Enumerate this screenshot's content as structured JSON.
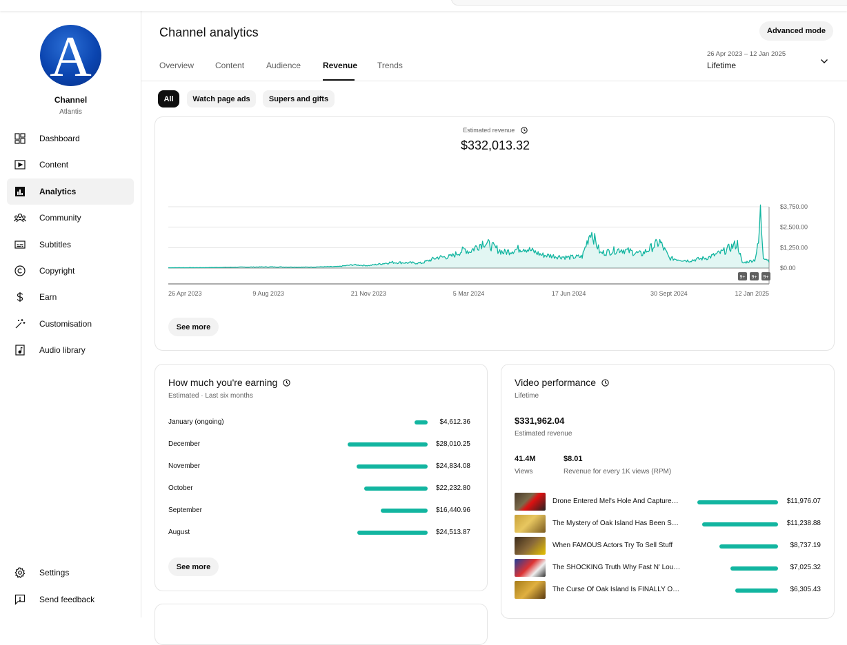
{
  "channel": {
    "name": "Channel",
    "subtitle": "Atlantis",
    "avatar_letter": "A"
  },
  "nav": {
    "items": [
      {
        "label": "Dashboard",
        "icon": "dashboard-icon"
      },
      {
        "label": "Content",
        "icon": "content-icon"
      },
      {
        "label": "Analytics",
        "icon": "analytics-icon",
        "active": true
      },
      {
        "label": "Community",
        "icon": "community-icon"
      },
      {
        "label": "Subtitles",
        "icon": "subtitles-icon"
      },
      {
        "label": "Copyright",
        "icon": "copyright-icon"
      },
      {
        "label": "Earn",
        "icon": "earn-icon"
      },
      {
        "label": "Customisation",
        "icon": "customisation-icon"
      },
      {
        "label": "Audio library",
        "icon": "audio-library-icon"
      }
    ],
    "bottom": [
      {
        "label": "Settings",
        "icon": "settings-icon"
      },
      {
        "label": "Send feedback",
        "icon": "feedback-icon"
      }
    ]
  },
  "header": {
    "title": "Channel analytics",
    "advanced_mode": "Advanced mode",
    "tabs": [
      "Overview",
      "Content",
      "Audience",
      "Revenue",
      "Trends"
    ],
    "active_tab": "Revenue",
    "date_range": "26 Apr 2023 – 12 Jan 2025",
    "date_label": "Lifetime"
  },
  "filters": {
    "chips": [
      "All",
      "Watch page ads",
      "Supers and gifts"
    ],
    "active": "All"
  },
  "revenue_card": {
    "label": "Estimated revenue",
    "value": "$332,013.32",
    "see_more": "See more",
    "badges": [
      "9+",
      "9+",
      "9+"
    ]
  },
  "earning_card": {
    "title": "How much you're earning",
    "subtitle": "Estimated · Last six months",
    "see_more": "See more",
    "rows": [
      {
        "month": "January (ongoing)",
        "value": "$4,612.36",
        "amount": 4612.36
      },
      {
        "month": "December",
        "value": "$28,010.25",
        "amount": 28010.25
      },
      {
        "month": "November",
        "value": "$24,834.08",
        "amount": 24834.08
      },
      {
        "month": "October",
        "value": "$22,232.80",
        "amount": 22232.8
      },
      {
        "month": "September",
        "value": "$16,440.96",
        "amount": 16440.96
      },
      {
        "month": "August",
        "value": "$24,513.87",
        "amount": 24513.87
      }
    ]
  },
  "video_card": {
    "title": "Video performance",
    "subtitle": "Lifetime",
    "total": "$331,962.04",
    "total_label": "Estimated revenue",
    "views": "41.4M",
    "views_label": "Views",
    "rpm": "$8.01",
    "rpm_label": "Revenue for every 1K views (RPM)",
    "videos": [
      {
        "title": "Drone Entered Mel's Hole And Captured Something Terrifying",
        "value": "$11,976.07",
        "amount": 11976.07
      },
      {
        "title": "The Mystery of Oak Island Has Been Solved",
        "value": "$11,238.88",
        "amount": 11238.88
      },
      {
        "title": "When FAMOUS Actors Try To Sell Stuff",
        "value": "$8,737.19",
        "amount": 8737.19
      },
      {
        "title": "The SHOCKING Truth Why Fast N' Loud Was Cancelled",
        "value": "$7,025.32",
        "amount": 7025.32
      },
      {
        "title": "The Curse Of Oak Island Is FINALLY Over",
        "value": "$6,305.43",
        "amount": 6305.43
      }
    ]
  },
  "chart_data": {
    "type": "area",
    "title": "Estimated revenue",
    "x_ticks": [
      "26 Apr 2023",
      "9 Aug 2023",
      "21 Nov 2023",
      "5 Mar 2024",
      "17 Jun 2024",
      "30 Sept 2024",
      "12 Jan 2025"
    ],
    "y_ticks": [
      "$0.00",
      "$1,250.00",
      "$2,500.00",
      "$3,750.00"
    ],
    "ylim": [
      0,
      3750
    ],
    "grid": true,
    "color": "#12b5a0",
    "x_start": "2023-04-26",
    "x_end": "2025-01-12",
    "anchors": [
      [
        "2023-04-26",
        20
      ],
      [
        "2023-06-01",
        25
      ],
      [
        "2023-07-15",
        60
      ],
      [
        "2023-08-09",
        70
      ],
      [
        "2023-09-15",
        55
      ],
      [
        "2023-10-20",
        90
      ],
      [
        "2023-11-05",
        200
      ],
      [
        "2023-11-21",
        150
      ],
      [
        "2023-12-15",
        350
      ],
      [
        "2024-01-15",
        300
      ],
      [
        "2024-02-01",
        650
      ],
      [
        "2024-02-15",
        700
      ],
      [
        "2024-03-01",
        1150
      ],
      [
        "2024-03-05",
        1000
      ],
      [
        "2024-03-20",
        1600
      ],
      [
        "2024-04-10",
        950
      ],
      [
        "2024-05-01",
        1250
      ],
      [
        "2024-05-20",
        800
      ],
      [
        "2024-06-17",
        650
      ],
      [
        "2024-07-01",
        700
      ],
      [
        "2024-07-10",
        2300
      ],
      [
        "2024-07-20",
        900
      ],
      [
        "2024-08-10",
        1150
      ],
      [
        "2024-09-01",
        850
      ],
      [
        "2024-09-20",
        1600
      ],
      [
        "2024-09-30",
        600
      ],
      [
        "2024-10-20",
        450
      ],
      [
        "2024-11-10",
        650
      ],
      [
        "2024-11-25",
        1000
      ],
      [
        "2024-12-10",
        1500
      ],
      [
        "2024-12-15",
        300
      ],
      [
        "2024-12-28",
        500
      ],
      [
        "2025-01-01",
        1500
      ],
      [
        "2025-01-03",
        3450
      ],
      [
        "2025-01-06",
        700
      ],
      [
        "2025-01-12",
        450
      ]
    ]
  }
}
